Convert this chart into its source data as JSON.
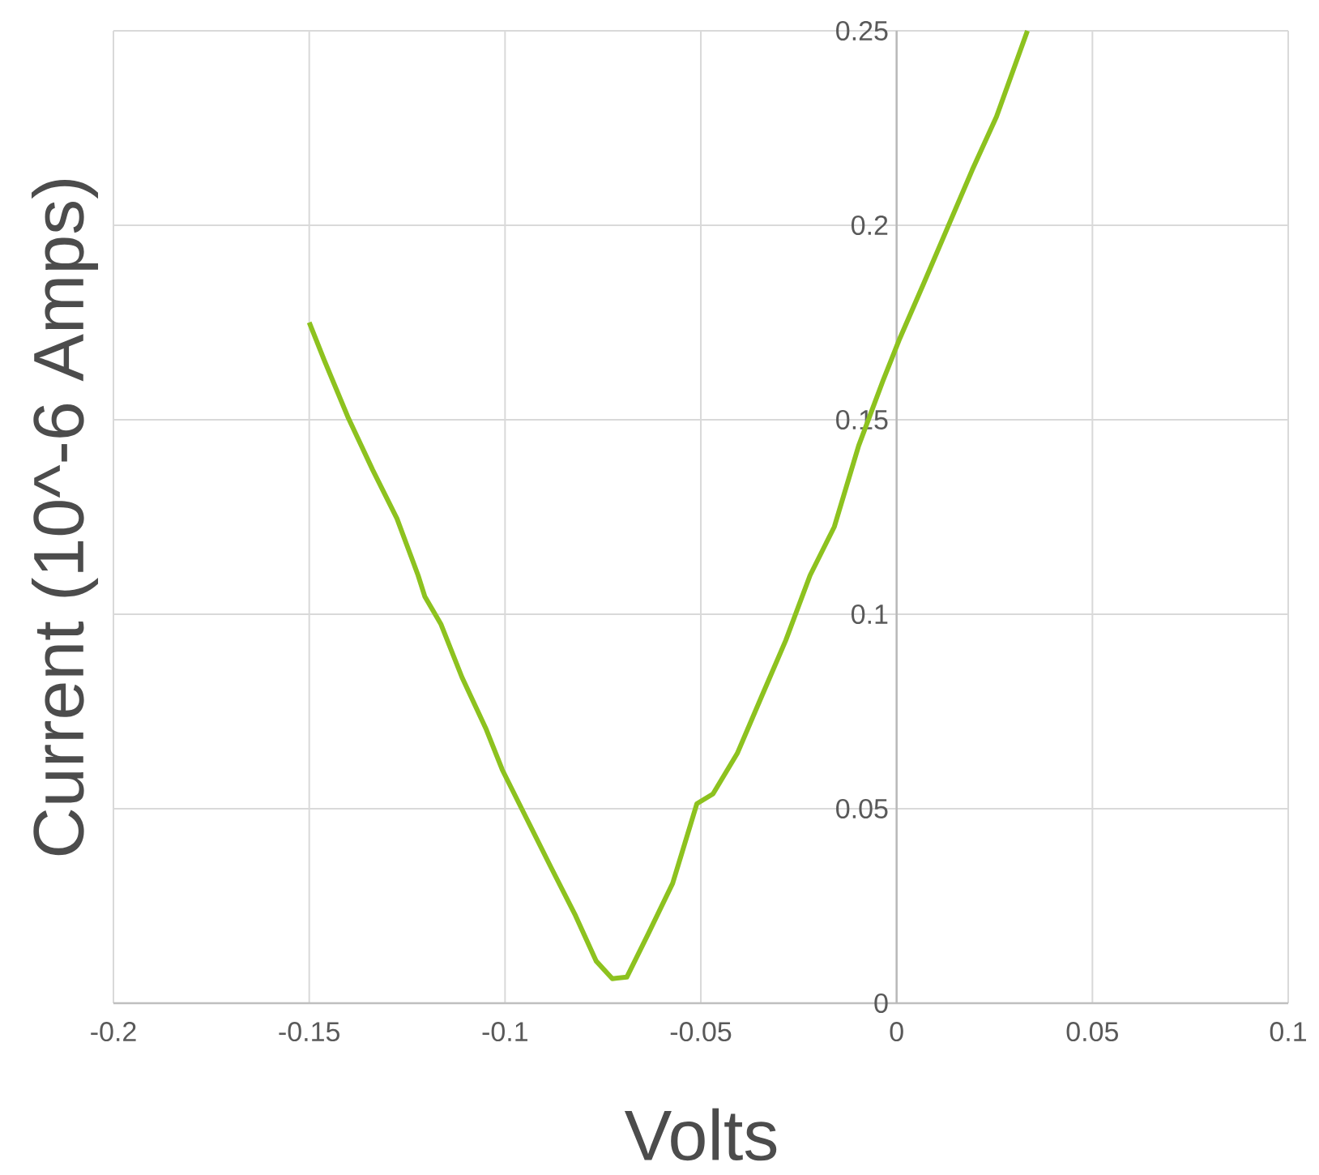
{
  "chart_data": {
    "type": "line",
    "xlabel": "Volts",
    "ylabel": "Current (10^-6 Amps)",
    "color": "#8dc21f",
    "grid": true,
    "xlim": [
      -0.2,
      0.1
    ],
    "ylim": [
      0,
      0.25
    ],
    "xticks": [
      -0.2,
      -0.15,
      -0.1,
      -0.05,
      0,
      0.05,
      0.1
    ],
    "yticks": [
      0,
      0.05,
      0.1,
      0.15,
      0.2,
      0.25
    ],
    "x": [
      -0.15,
      -0.1462,
      -0.14,
      -0.1338,
      -0.1276,
      -0.1222,
      -0.1205,
      -0.1164,
      -0.111,
      -0.1048,
      -0.1007,
      -0.0945,
      -0.0883,
      -0.082,
      -0.0767,
      -0.0726,
      -0.0689,
      -0.0634,
      -0.0572,
      -0.051,
      -0.0469,
      -0.0407,
      -0.0345,
      -0.0283,
      -0.0221,
      -0.0159,
      -0.0097,
      -0.0035,
      0.0006,
      0.0069,
      0.0131,
      0.0193,
      0.0255,
      0.0334
    ],
    "values": [
      0.175,
      0.1654,
      0.1504,
      0.1371,
      0.1246,
      0.11,
      0.1046,
      0.0975,
      0.0838,
      0.0704,
      0.06,
      0.0475,
      0.035,
      0.0225,
      0.0108,
      0.0063,
      0.0067,
      0.0179,
      0.0308,
      0.0513,
      0.0538,
      0.0642,
      0.0788,
      0.0933,
      0.11,
      0.1225,
      0.1433,
      0.16,
      0.1704,
      0.185,
      0.1996,
      0.2142,
      0.2279,
      0.25
    ]
  }
}
